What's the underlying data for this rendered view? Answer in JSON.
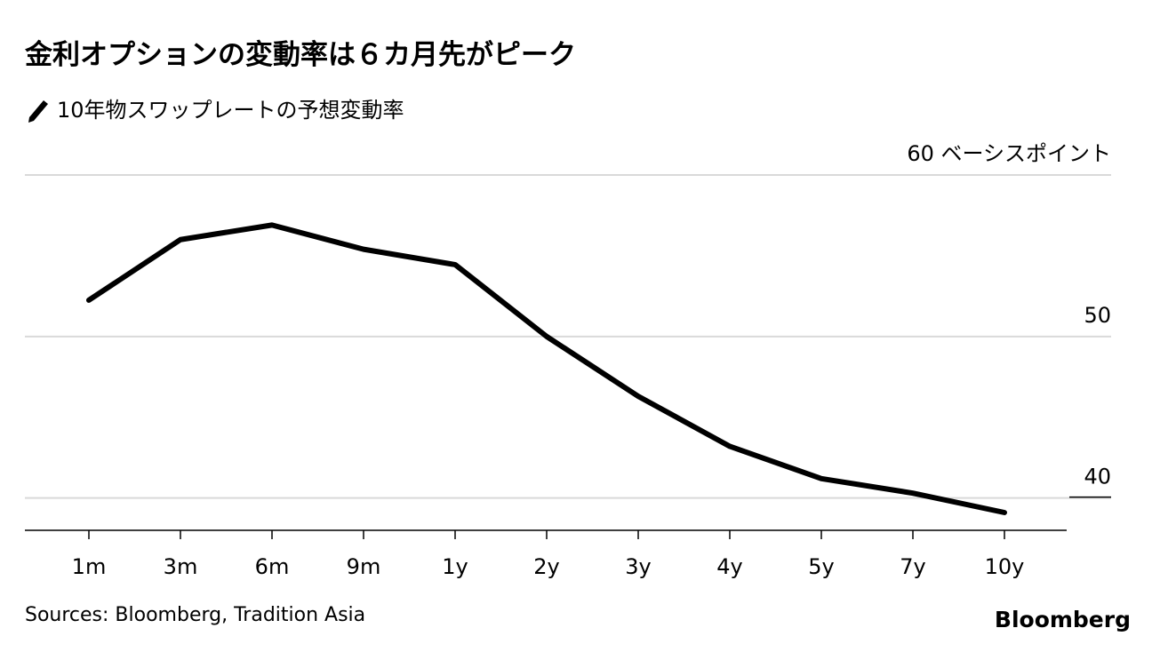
{
  "chart_data": {
    "type": "line",
    "title": "金利オプションの変動率は６カ月先がピーク",
    "categories": [
      "1m",
      "3m",
      "6m",
      "9m",
      "1y",
      "2y",
      "3y",
      "4y",
      "5y",
      "7y",
      "10y"
    ],
    "series": [
      {
        "name": "10年物スワップレートの予想変動率",
        "color": "#000000",
        "values": [
          52.25,
          56.0,
          56.9,
          55.4,
          54.45,
          50.0,
          46.3,
          43.2,
          41.2,
          40.3,
          39.1
        ]
      }
    ],
    "ylim": [
      38.0,
      60
    ],
    "yticks": [
      40,
      50,
      {
        "value": 60,
        "label": "60 ベーシスポイント"
      }
    ],
    "grid": true,
    "source": "Sources: Bloomberg, Tradition Asia",
    "brand": "Bloomberg"
  }
}
